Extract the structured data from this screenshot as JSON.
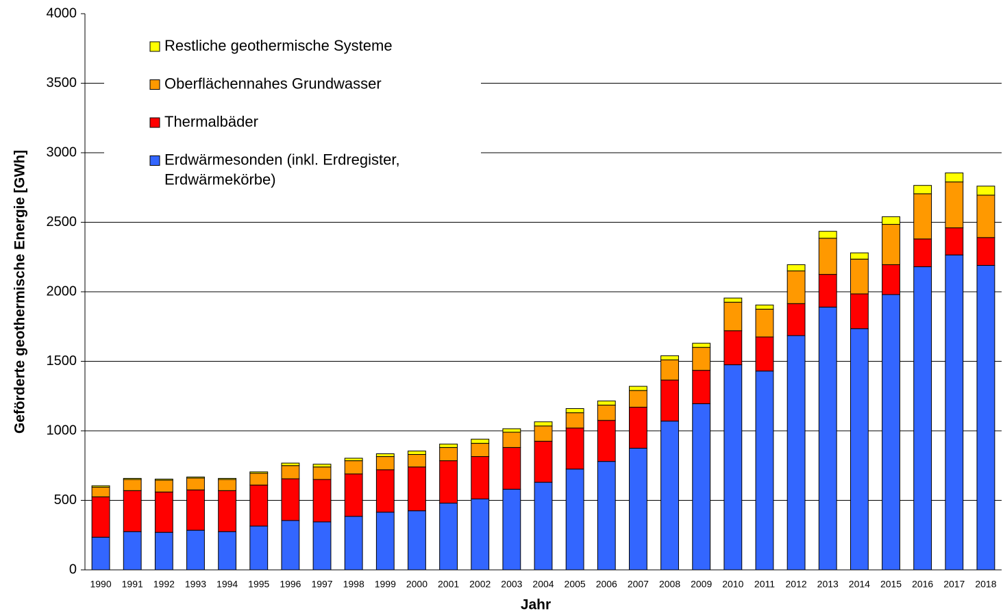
{
  "chart_data": {
    "type": "stacked_bar",
    "xlabel": "Jahr",
    "ylabel": "Geförderte geothermische Energie [GWh]",
    "categories": [
      "1990",
      "1991",
      "1992",
      "1993",
      "1994",
      "1995",
      "1996",
      "1997",
      "1998",
      "1999",
      "2000",
      "2001",
      "2002",
      "2003",
      "2004",
      "2005",
      "2006",
      "2007",
      "2008",
      "2009",
      "2010",
      "2011",
      "2012",
      "2013",
      "2014",
      "2015",
      "2016",
      "2017",
      "2018"
    ],
    "series": [
      {
        "name": "Erdwärmesonden (inkl. Erdregister, Erdwärmekörbe)",
        "color": "#3366ff",
        "values": [
          235,
          275,
          270,
          285,
          275,
          315,
          355,
          345,
          385,
          415,
          425,
          480,
          510,
          580,
          630,
          725,
          780,
          875,
          1070,
          1195,
          1475,
          1430,
          1685,
          1890,
          1735,
          1980,
          2180,
          2265,
          2190
        ]
      },
      {
        "name": "Thermalbäder",
        "color": "#ff0000",
        "values": [
          290,
          295,
          290,
          290,
          295,
          295,
          300,
          305,
          305,
          305,
          315,
          305,
          305,
          300,
          295,
          295,
          295,
          295,
          295,
          240,
          245,
          245,
          230,
          235,
          250,
          215,
          200,
          195,
          200
        ]
      },
      {
        "name": "Oberflächennahes Grundwasser",
        "color": "#ff9900",
        "values": [
          70,
          80,
          85,
          85,
          80,
          85,
          95,
          90,
          95,
          95,
          90,
          95,
          95,
          110,
          110,
          110,
          110,
          120,
          145,
          165,
          205,
          200,
          235,
          260,
          250,
          290,
          325,
          330,
          305
        ]
      },
      {
        "name": "Restliche geothermische Systeme",
        "color": "#ffff00",
        "values": [
          10,
          8,
          8,
          8,
          8,
          10,
          18,
          20,
          18,
          20,
          25,
          25,
          30,
          25,
          30,
          30,
          30,
          30,
          30,
          30,
          30,
          30,
          45,
          50,
          45,
          55,
          60,
          65,
          65
        ]
      }
    ],
    "ylim": [
      0,
      4000
    ],
    "yticks": [
      0,
      500,
      1000,
      1500,
      2000,
      2500,
      3000,
      3500,
      4000
    ],
    "grid": true
  }
}
